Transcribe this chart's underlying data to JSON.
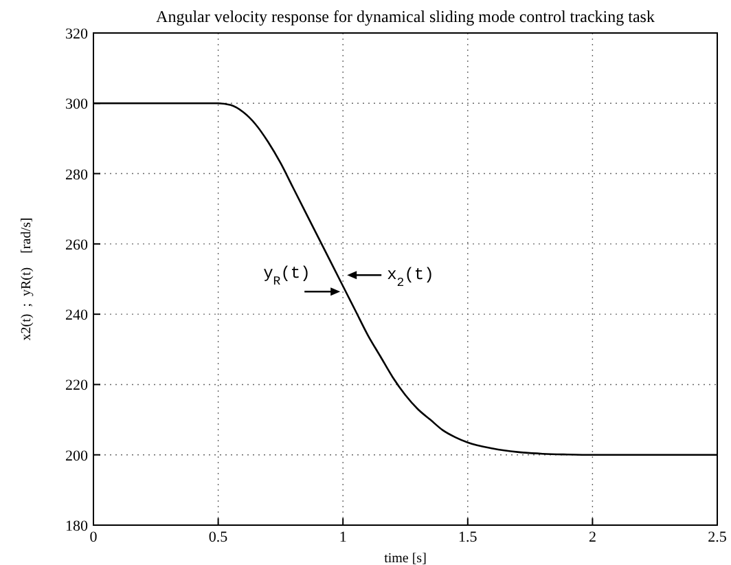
{
  "chart_data": {
    "type": "line",
    "title": "Angular velocity response for dynamical sliding mode control tracking task",
    "xlabel": "time [s]",
    "ylabel": "x2(t)  ;  yR(t)    [rad/s]",
    "x": [
      0,
      0.5,
      0.55,
      0.6,
      0.65,
      0.7,
      0.75,
      0.8,
      0.85,
      0.9,
      0.95,
      1.0,
      1.05,
      1.1,
      1.15,
      1.2,
      1.25,
      1.3,
      1.35,
      1.4,
      1.45,
      1.5,
      1.6,
      1.7,
      1.8,
      1.9,
      2.0,
      2.5
    ],
    "series": [
      {
        "color": "#000000",
        "values": [
          300,
          300,
          299.5,
          297.5,
          294,
          289,
          283,
          276,
          269,
          262,
          255,
          248,
          241,
          234,
          228,
          222,
          217,
          213,
          210,
          207,
          205,
          203.5,
          201.8,
          200.8,
          200.3,
          200.1,
          200,
          200
        ]
      }
    ],
    "xlim": [
      0,
      2.5
    ],
    "ylim": [
      180,
      320
    ],
    "xticks": [
      0,
      0.5,
      1,
      1.5,
      2,
      2.5
    ],
    "yticks": [
      180,
      200,
      220,
      240,
      260,
      280,
      300,
      320
    ],
    "grid": true,
    "line_style": "solid",
    "annotations": [
      {
        "text": "y$_{R}$(t)",
        "x": 1,
        "y": 248
      },
      {
        "text": "x$_{2}$(t)",
        "x": 1,
        "y": 248
      }
    ]
  }
}
